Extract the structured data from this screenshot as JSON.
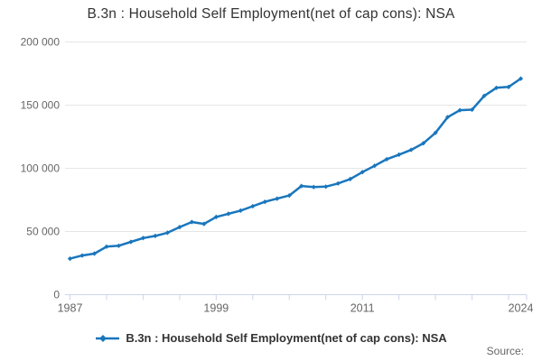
{
  "title": "B.3n : Household Self Employment(net of cap cons): NSA",
  "legend": {
    "label": "B.3n : Household Self Employment(net of cap cons): NSA"
  },
  "footer": {
    "source_label": "Source:"
  },
  "colors": {
    "line": "#1976bd",
    "grid": "#e6e6e6",
    "axis": "#ccd6eb",
    "text_muted": "#666666",
    "text_dark": "#333333"
  },
  "chart_data": {
    "type": "line",
    "title": "B.3n : Household Self Employment(net of cap cons): NSA",
    "xlabel": "",
    "ylabel": "",
    "x": [
      1987,
      1988,
      1989,
      1990,
      1991,
      1992,
      1993,
      1994,
      1995,
      1996,
      1997,
      1998,
      1999,
      2000,
      2001,
      2002,
      2003,
      2004,
      2005,
      2006,
      2007,
      2008,
      2009,
      2010,
      2011,
      2012,
      2013,
      2014,
      2015,
      2016,
      2017,
      2018,
      2019,
      2020,
      2021,
      2022,
      2023,
      2024
    ],
    "values": [
      28500,
      31000,
      32500,
      38000,
      38700,
      41800,
      44800,
      46500,
      49000,
      53500,
      57500,
      56000,
      61500,
      64000,
      66500,
      70000,
      73500,
      76000,
      78500,
      86000,
      85200,
      85500,
      88000,
      91500,
      97000,
      102000,
      107200,
      110800,
      114600,
      119800,
      128100,
      140500,
      146000,
      146400,
      157300,
      163700,
      164400,
      171000
    ],
    "series_name": "B.3n : Household Self Employment(net of cap cons): NSA",
    "x_axis": {
      "range": [
        1987,
        2024
      ],
      "minor_tick_interval_years": 3,
      "labeled_ticks": [
        "1987",
        "1999",
        "2011",
        "2024"
      ],
      "labeled_tick_years": [
        1987,
        1999,
        2011,
        2024
      ]
    },
    "y_axis": {
      "range": [
        0,
        200000
      ],
      "ticks": [
        0,
        50000,
        100000,
        150000,
        200000
      ],
      "tick_labels": [
        "0",
        "50 000",
        "100 000",
        "150 000",
        "200 000"
      ]
    },
    "grid": "horizontal",
    "legend_position": "bottom",
    "marker": "diamond"
  }
}
